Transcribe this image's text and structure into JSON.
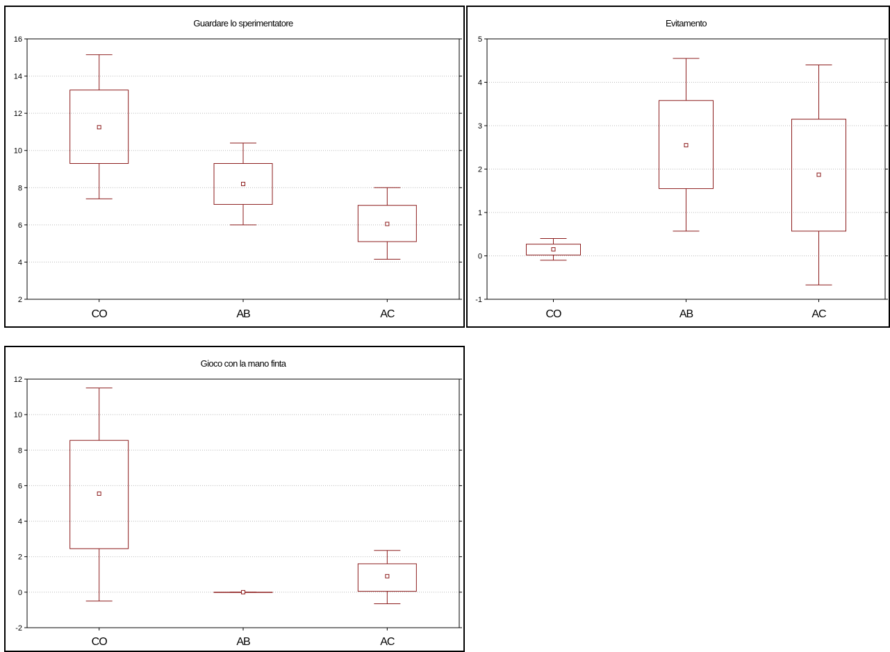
{
  "chart_data": [
    {
      "type": "box",
      "title": "Guardare lo sperimentatore",
      "categories": [
        "CO",
        "AB",
        "AC"
      ],
      "ylim": [
        2,
        16
      ],
      "yticks": [
        2,
        4,
        6,
        8,
        10,
        12,
        14,
        16
      ],
      "grid": true,
      "color": "#8b1a1a",
      "series": [
        {
          "category": "CO",
          "mean": 11.25,
          "box_low": 9.3,
          "box_high": 13.25,
          "whisker_low": 7.4,
          "whisker_high": 15.15
        },
        {
          "category": "AB",
          "mean": 8.2,
          "box_low": 7.1,
          "box_high": 9.3,
          "whisker_low": 6.0,
          "whisker_high": 10.4
        },
        {
          "category": "AC",
          "mean": 6.05,
          "box_low": 5.1,
          "box_high": 7.05,
          "whisker_low": 4.15,
          "whisker_high": 8.0
        }
      ]
    },
    {
      "type": "box",
      "title": "Evitamento",
      "categories": [
        "CO",
        "AB",
        "AC"
      ],
      "ylim": [
        -1,
        5
      ],
      "yticks": [
        -1,
        0,
        1,
        2,
        3,
        4,
        5
      ],
      "grid": true,
      "color": "#8b1a1a",
      "series": [
        {
          "category": "CO",
          "mean": 0.15,
          "box_low": 0.02,
          "box_high": 0.27,
          "whisker_low": -0.1,
          "whisker_high": 0.4
        },
        {
          "category": "AB",
          "mean": 2.55,
          "box_low": 1.55,
          "box_high": 3.58,
          "whisker_low": 0.57,
          "whisker_high": 4.55
        },
        {
          "category": "AC",
          "mean": 1.87,
          "box_low": 0.57,
          "box_high": 3.15,
          "whisker_low": -0.67,
          "whisker_high": 4.4
        }
      ]
    },
    {
      "type": "box",
      "title": "Gioco con la mano finta",
      "categories": [
        "CO",
        "AB",
        "AC"
      ],
      "ylim": [
        -2,
        12
      ],
      "yticks": [
        -2,
        0,
        2,
        4,
        6,
        8,
        10,
        12
      ],
      "grid": true,
      "color": "#8b1a1a",
      "series": [
        {
          "category": "CO",
          "mean": 5.55,
          "box_low": 2.45,
          "box_high": 8.55,
          "whisker_low": -0.5,
          "whisker_high": 11.5
        },
        {
          "category": "AB",
          "mean": 0.0,
          "box_low": 0.0,
          "box_high": 0.0,
          "whisker_low": 0.0,
          "whisker_high": 0.0
        },
        {
          "category": "AC",
          "mean": 0.9,
          "box_low": 0.05,
          "box_high": 1.6,
          "whisker_low": -0.65,
          "whisker_high": 2.35
        }
      ]
    }
  ]
}
